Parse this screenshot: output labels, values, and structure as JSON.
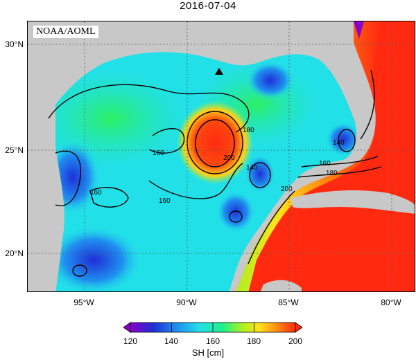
{
  "title": "2016-07-04",
  "credit": "NOAA/AOML",
  "latitude_labels": [
    "30°N",
    "25°N",
    "20°N"
  ],
  "longitude_labels": [
    "95°W",
    "90°W",
    "85°W",
    "80°W"
  ],
  "contour_labels": [
    "140",
    "160",
    "180",
    "200"
  ],
  "colorbar": {
    "label": "SH [cm]",
    "ticks": [
      "120",
      "140",
      "160",
      "180",
      "200"
    ],
    "min": 120,
    "max": 200,
    "colors": [
      "#8a00c8",
      "#1f2fd6",
      "#1f8ff0",
      "#22e0e8",
      "#1ef08a",
      "#aef021",
      "#ffe21a",
      "#ff8a12",
      "#ff2a10"
    ]
  },
  "colors": {
    "land": "#c8c8c8",
    "warm_core": "#ff2a10",
    "cool_core": "#2a48e0"
  },
  "marker": "triangle-marker"
}
